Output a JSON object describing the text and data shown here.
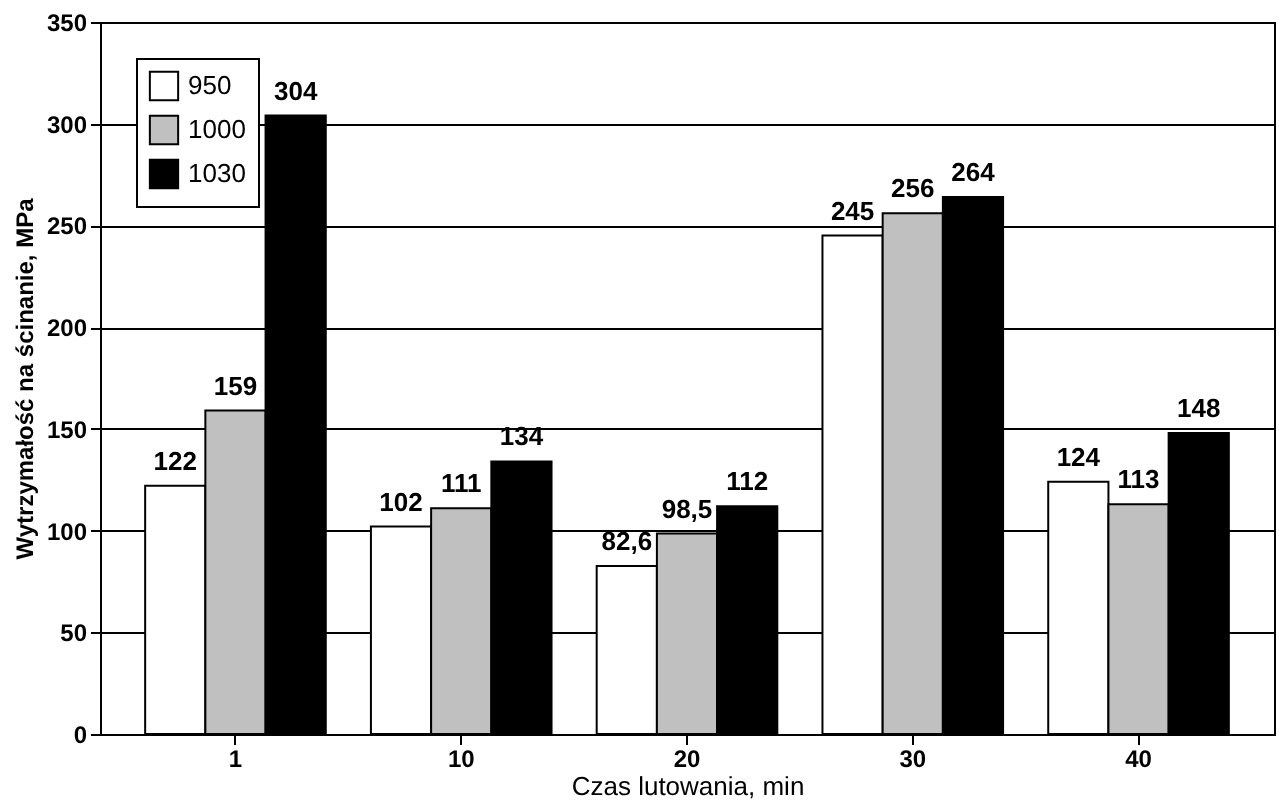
{
  "chart_data": {
    "type": "bar",
    "xlabel": "Czas lutowania, min",
    "ylabel": "Wytrzymałość na ścinanie, MPa",
    "categories": [
      "1",
      "10",
      "20",
      "30",
      "40"
    ],
    "series": [
      {
        "name": "950",
        "color": "#ffffff",
        "values": [
          122,
          102,
          82.6,
          245,
          124
        ],
        "value_labels": [
          "122",
          "102",
          "82,6",
          "245",
          "124"
        ]
      },
      {
        "name": "1000",
        "color": "#c0c0c0",
        "values": [
          159,
          111,
          98.5,
          256,
          113
        ],
        "value_labels": [
          "159",
          "111",
          "98,5",
          "256",
          "113"
        ]
      },
      {
        "name": "1030",
        "color": "#000000",
        "values": [
          304,
          134,
          112,
          264,
          148
        ],
        "value_labels": [
          "304",
          "134",
          "112",
          "264",
          "148"
        ]
      }
    ],
    "ylim": [
      0,
      350
    ],
    "yticks": [
      0,
      50,
      100,
      150,
      200,
      250,
      300,
      350
    ],
    "grid": "y",
    "legend": "top left"
  }
}
